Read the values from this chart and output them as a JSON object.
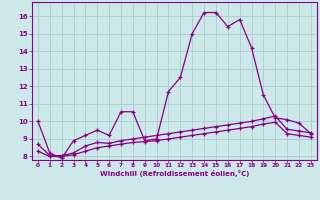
{
  "bg_color": "#cce8e8",
  "grid_color": "#aacccc",
  "line_color": "#880088",
  "xlabel": "Windchill (Refroidissement éolien,°C)",
  "xlim": [
    -0.5,
    23.5
  ],
  "ylim": [
    7.8,
    16.8
  ],
  "yticks": [
    8,
    9,
    10,
    11,
    12,
    13,
    14,
    15,
    16
  ],
  "xticks": [
    0,
    1,
    2,
    3,
    4,
    5,
    6,
    7,
    8,
    9,
    10,
    11,
    12,
    13,
    14,
    15,
    16,
    17,
    18,
    19,
    20,
    21,
    22,
    23
  ],
  "series1_x": [
    0,
    1,
    2,
    3,
    4,
    5,
    6,
    7,
    8,
    9,
    10,
    11,
    12,
    13,
    14,
    15,
    16,
    17,
    18,
    19,
    20,
    21,
    22,
    23
  ],
  "series1_y": [
    10.0,
    8.2,
    7.9,
    8.9,
    9.2,
    9.5,
    9.2,
    10.55,
    10.55,
    8.9,
    9.0,
    11.7,
    12.5,
    15.0,
    16.2,
    16.2,
    15.4,
    15.8,
    14.2,
    11.5,
    10.2,
    10.1,
    9.9,
    9.3
  ],
  "series2_x": [
    0,
    1,
    2,
    3,
    4,
    5,
    6,
    7,
    8,
    9,
    10,
    11,
    12,
    13,
    14,
    15,
    16,
    17,
    18,
    19,
    20,
    21,
    22,
    23
  ],
  "series2_y": [
    8.3,
    8.0,
    8.0,
    8.1,
    8.3,
    8.5,
    8.6,
    8.7,
    8.8,
    8.85,
    8.9,
    9.0,
    9.1,
    9.2,
    9.3,
    9.4,
    9.5,
    9.6,
    9.7,
    9.85,
    9.95,
    9.3,
    9.2,
    9.1
  ],
  "series3_x": [
    0,
    1,
    2,
    3,
    4,
    5,
    6,
    7,
    8,
    9,
    10,
    11,
    12,
    13,
    14,
    15,
    16,
    17,
    18,
    19,
    20,
    21,
    22,
    23
  ],
  "series3_y": [
    8.7,
    8.05,
    8.05,
    8.2,
    8.6,
    8.8,
    8.75,
    8.9,
    9.0,
    9.1,
    9.2,
    9.3,
    9.4,
    9.5,
    9.6,
    9.7,
    9.8,
    9.9,
    10.0,
    10.15,
    10.3,
    9.55,
    9.45,
    9.35
  ]
}
